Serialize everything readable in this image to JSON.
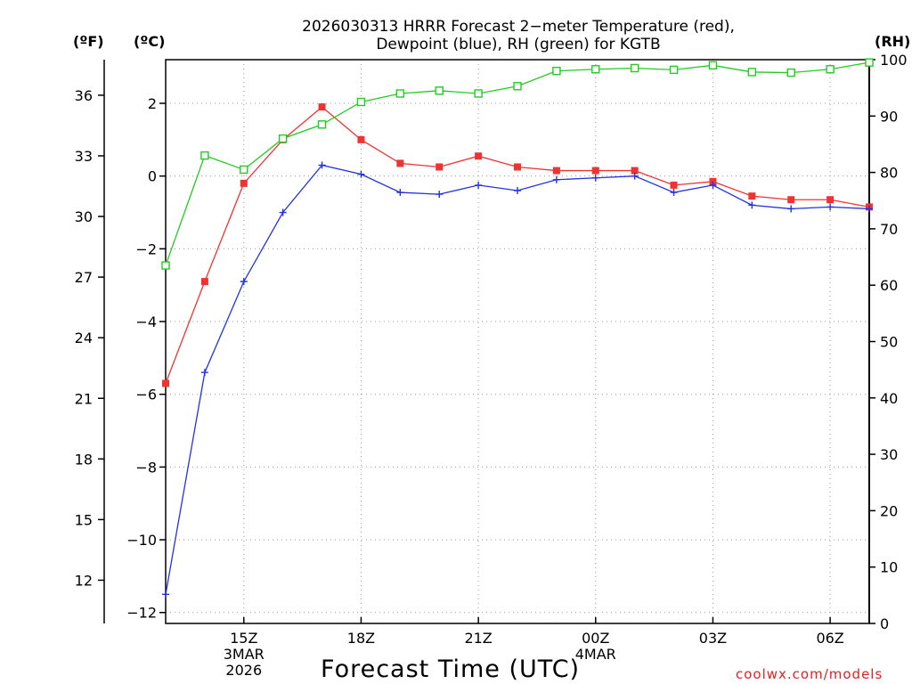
{
  "chart_data": {
    "type": "line",
    "title_lines": [
      "2026030313 HRRR Forecast 2−meter Temperature (red),",
      "Dewpoint (blue), RH (green) for KGTB"
    ],
    "xlabel": "Forecast Time (UTC)",
    "credit": "coolwx.com/models",
    "units": {
      "fahrenheit": "(ºF)",
      "celsius": "(ºC)",
      "rh": "(RH)"
    },
    "x_hours": [
      0,
      1,
      2,
      3,
      4,
      5,
      6,
      7,
      8,
      9,
      10,
      11,
      12,
      13,
      14,
      15,
      16,
      17,
      18
    ],
    "xlim": [
      0,
      18
    ],
    "x_ticks": [
      {
        "hour": 2,
        "lines": [
          "15Z",
          "3MAR",
          "2026"
        ]
      },
      {
        "hour": 5,
        "lines": [
          "18Z"
        ]
      },
      {
        "hour": 8,
        "lines": [
          "21Z"
        ]
      },
      {
        "hour": 11,
        "lines": [
          "00Z",
          "4MAR"
        ]
      },
      {
        "hour": 14,
        "lines": [
          "03Z"
        ]
      },
      {
        "hour": 17,
        "lines": [
          "06Z"
        ]
      }
    ],
    "celsius_axis": {
      "lim": [
        -12.3,
        3.2
      ],
      "ticks": [
        2,
        0,
        -2,
        -4,
        -6,
        -8,
        -10,
        -12
      ],
      "tick_labels": [
        "2",
        "0",
        "−2",
        "−4",
        "−6",
        "−8",
        "−10",
        "−12"
      ]
    },
    "fahrenheit_axis": {
      "ticks": [
        36,
        33,
        30,
        27,
        24,
        21,
        18,
        15,
        12
      ],
      "tick_labels": [
        "36",
        "33",
        "30",
        "27",
        "24",
        "21",
        "18",
        "15",
        "12"
      ]
    },
    "rh_axis": {
      "lim": [
        0,
        100
      ],
      "ticks": [
        100,
        90,
        80,
        70,
        60,
        50,
        40,
        30,
        20,
        10,
        0
      ],
      "tick_labels": [
        "100",
        "90",
        "80",
        "70",
        "60",
        "50",
        "40",
        "30",
        "20",
        "10",
        "0"
      ]
    },
    "series": [
      {
        "name": "Temperature",
        "axis": "celsius",
        "color": "#ee3333",
        "marker": "filled-square",
        "values": [
          -5.7,
          -2.9,
          -0.2,
          1.0,
          1.9,
          1.0,
          0.35,
          0.25,
          0.55,
          0.25,
          0.15,
          0.15,
          0.15,
          -0.25,
          -0.15,
          -0.55,
          -0.65,
          -0.65,
          -0.85
        ]
      },
      {
        "name": "Dewpoint",
        "axis": "celsius",
        "color": "#2233dd",
        "marker": "plus",
        "values": [
          -11.5,
          -5.4,
          -2.9,
          -1.0,
          0.3,
          0.05,
          -0.45,
          -0.5,
          -0.25,
          -0.4,
          -0.1,
          -0.05,
          0.0,
          -0.45,
          -0.25,
          -0.8,
          -0.9,
          -0.85,
          -0.9
        ]
      },
      {
        "name": "RH",
        "axis": "rh",
        "color": "#22cc22",
        "marker": "open-square",
        "values": [
          63.5,
          83,
          80.5,
          86,
          88.5,
          92.5,
          94,
          94.5,
          94,
          95.3,
          98,
          98.3,
          98.5,
          98.2,
          99,
          97.8,
          97.7,
          98.3,
          99.5
        ]
      }
    ]
  }
}
